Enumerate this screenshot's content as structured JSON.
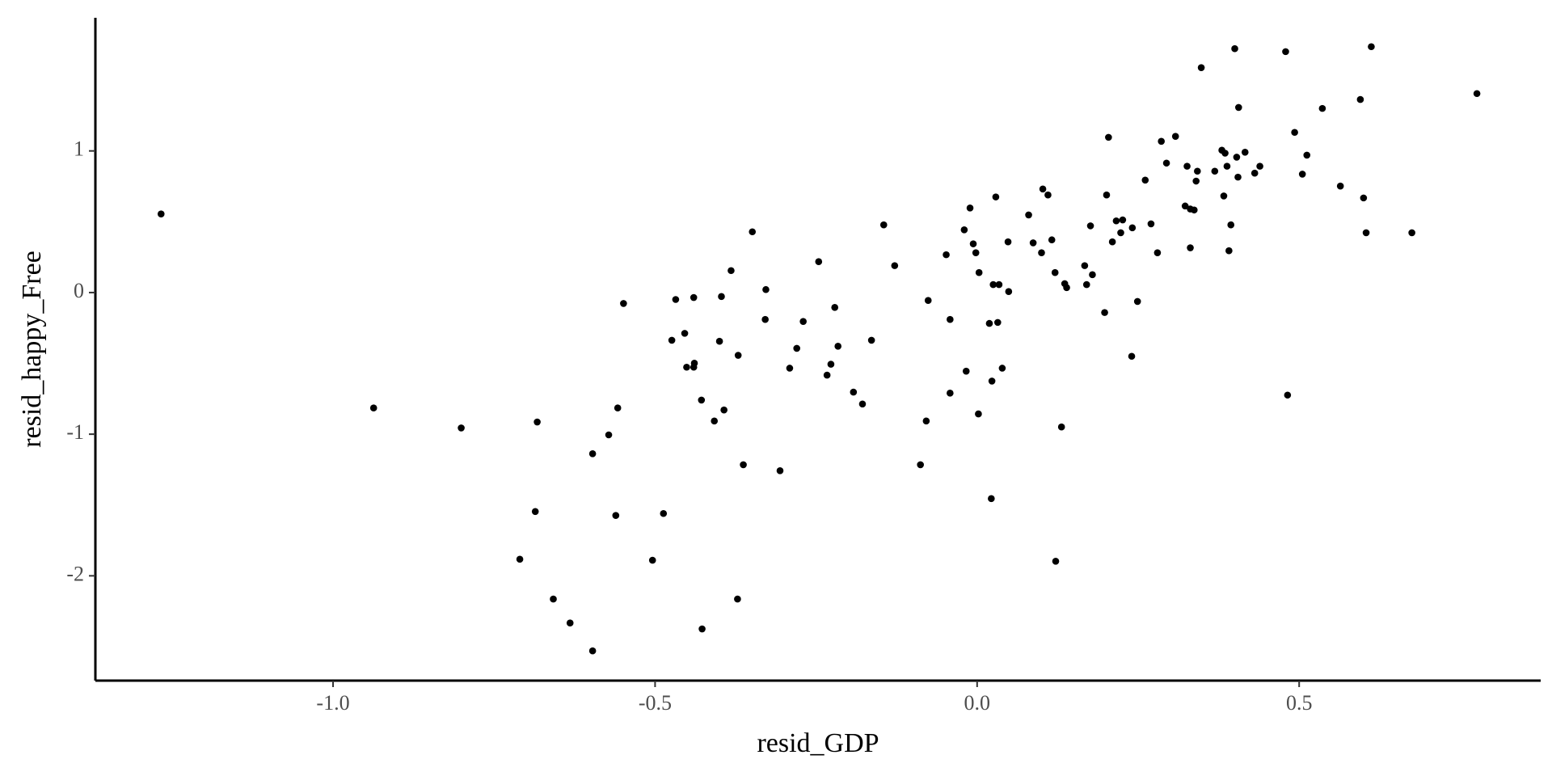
{
  "chart_data": {
    "type": "scatter",
    "x_label": "resid_GDP",
    "y_label": "resid_happy_Free",
    "color": "#000000",
    "grid": false,
    "xlim": [
      -1.369,
      0.875
    ],
    "ylim": [
      -2.74,
      1.94
    ],
    "xticks": [
      {
        "value": -1,
        "label": "-1.0"
      },
      -0.5,
      {
        "value": 0,
        "label": "0.0"
      },
      0.5
    ],
    "yticks": [
      -2,
      -1,
      0,
      1
    ],
    "x": [
      -1.267,
      -0.937,
      -0.801,
      -0.71,
      -0.686,
      -0.683,
      -0.658,
      -0.632,
      -0.597,
      -0.597,
      -0.572,
      -0.561,
      -0.558,
      -0.549,
      -0.504,
      -0.487,
      -0.474,
      -0.468,
      -0.454,
      -0.451,
      -0.44,
      -0.439,
      -0.44,
      -0.427,
      -0.428,
      -0.408,
      -0.4,
      -0.397,
      -0.393,
      -0.382,
      -0.372,
      -0.371,
      -0.363,
      -0.349,
      -0.329,
      -0.328,
      -0.306,
      -0.291,
      -0.28,
      -0.27,
      -0.246,
      -0.233,
      -0.227,
      -0.221,
      -0.216,
      -0.192,
      -0.178,
      -0.164,
      -0.145,
      -0.128,
      -0.088,
      -0.079,
      -0.076,
      -0.048,
      -0.042,
      -0.042,
      -0.02,
      -0.017,
      -0.011,
      -0.006,
      -0.002,
      0.002,
      0.003,
      0.019,
      0.022,
      0.023,
      0.025,
      0.029,
      0.032,
      0.034,
      0.039,
      0.048,
      0.049,
      0.08,
      0.087,
      0.1,
      0.102,
      0.11,
      0.116,
      0.121,
      0.122,
      0.131,
      0.136,
      0.139,
      0.167,
      0.17,
      0.176,
      0.179,
      0.198,
      0.201,
      0.204,
      0.21,
      0.216,
      0.223,
      0.226,
      0.24,
      0.241,
      0.249,
      0.261,
      0.27,
      0.28,
      0.286,
      0.294,
      0.308,
      0.323,
      0.326,
      0.331,
      0.331,
      0.337,
      0.34,
      0.342,
      0.348,
      0.369,
      0.38,
      0.383,
      0.385,
      0.388,
      0.391,
      0.394,
      0.4,
      0.403,
      0.405,
      0.406,
      0.416,
      0.431,
      0.439,
      0.479,
      0.482,
      0.493,
      0.505,
      0.512,
      0.536,
      0.564,
      0.595,
      0.6,
      0.604,
      0.612,
      0.675,
      0.776
    ],
    "values": [
      0.555,
      -0.815,
      -0.956,
      -1.883,
      -1.546,
      -0.914,
      -2.164,
      -2.333,
      -2.53,
      -1.138,
      -1.005,
      -1.574,
      -0.815,
      -0.077,
      -1.89,
      -1.56,
      -0.337,
      -0.049,
      -0.288,
      -0.527,
      -0.527,
      -0.499,
      -0.035,
      -2.375,
      -0.759,
      -0.907,
      -0.344,
      -0.028,
      -0.829,
      0.155,
      -2.164,
      -0.443,
      -1.216,
      0.429,
      -0.19,
      0.021,
      -1.258,
      -0.534,
      -0.394,
      -0.204,
      0.218,
      -0.583,
      -0.506,
      -0.105,
      -0.379,
      -0.703,
      -0.787,
      -0.337,
      0.478,
      0.19,
      -1.216,
      -0.907,
      -0.056,
      0.267,
      -0.19,
      -0.71,
      0.443,
      -0.555,
      0.597,
      0.344,
      0.281,
      -0.857,
      0.141,
      -0.218,
      -1.455,
      -0.625,
      0.056,
      0.675,
      -0.211,
      0.056,
      -0.534,
      0.358,
      0.007,
      0.548,
      0.351,
      0.281,
      0.731,
      0.689,
      0.372,
      0.141,
      -1.897,
      -0.949,
      0.063,
      0.035,
      0.19,
      0.056,
      0.471,
      0.126,
      -0.141,
      0.689,
      1.096,
      0.358,
      0.506,
      0.422,
      0.513,
      -0.45,
      0.457,
      -0.063,
      0.794,
      0.485,
      0.281,
      1.068,
      0.914,
      1.103,
      0.611,
      0.892,
      0.316,
      0.59,
      0.583,
      0.787,
      0.857,
      1.588,
      0.857,
      1.005,
      0.682,
      0.984,
      0.892,
      0.295,
      0.478,
      1.722,
      0.956,
      0.815,
      1.307,
      0.991,
      0.843,
      0.892,
      1.701,
      -0.724,
      1.131,
      0.836,
      0.97,
      1.3,
      0.752,
      1.363,
      0.668,
      0.422,
      1.736,
      0.422,
      1.405
    ]
  }
}
